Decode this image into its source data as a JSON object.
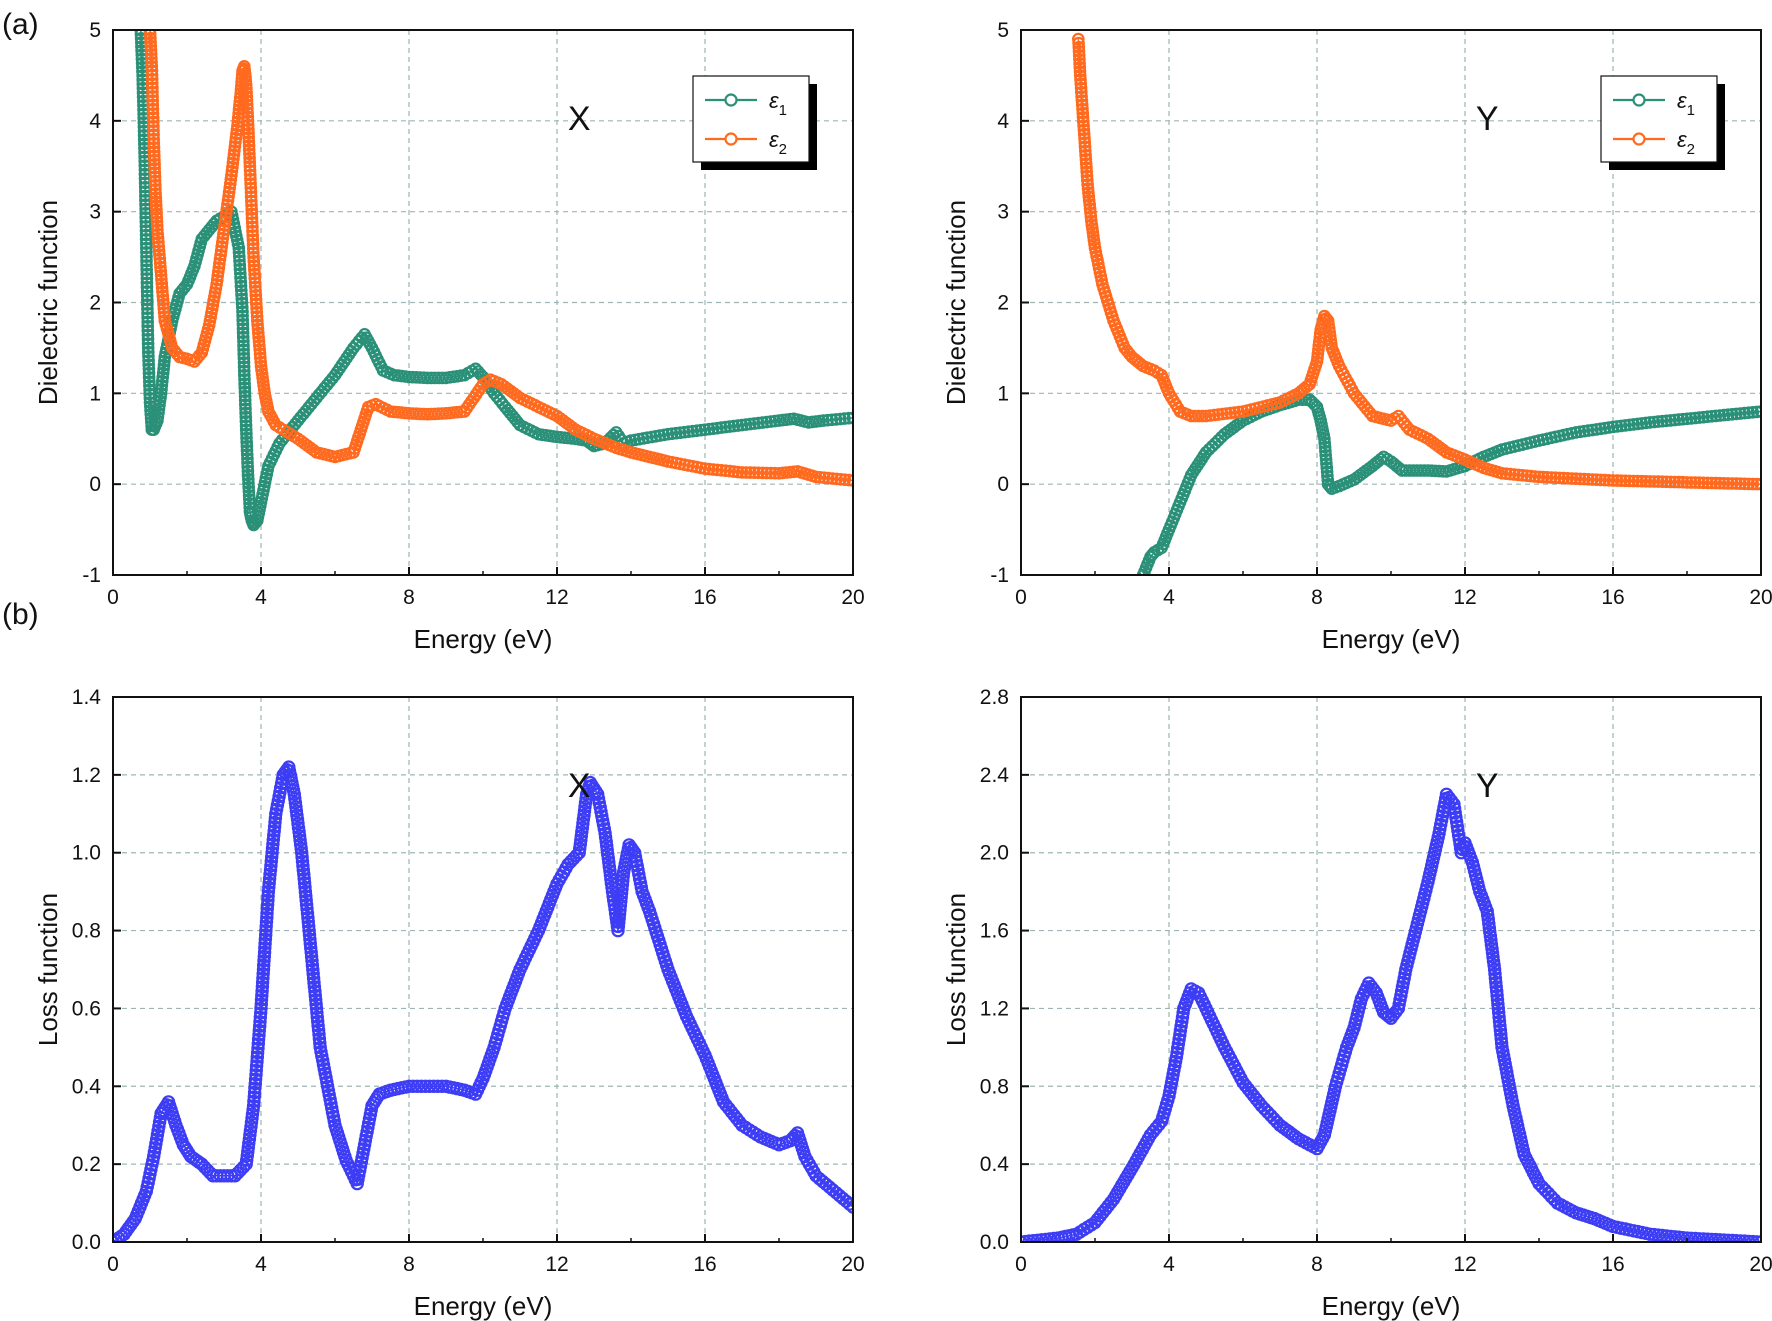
{
  "figure": {
    "panel_a_label": "(a)",
    "panel_b_label": "(b)"
  },
  "colors": {
    "eps1": "#2a9078",
    "eps2": "#ff6a1f",
    "loss": "#3d3df5",
    "grid": "#9fb5b5"
  },
  "chart_data": [
    {
      "id": "a-x",
      "type": "line",
      "title": "X",
      "xlabel": "Energy (eV)",
      "ylabel": "Dielectric function",
      "xlim": [
        0,
        20
      ],
      "ylim": [
        -1,
        5
      ],
      "xticks": [
        0,
        4,
        8,
        12,
        16,
        20
      ],
      "yticks": [
        -1,
        0,
        1,
        2,
        3,
        4,
        5
      ],
      "ytick_labels": [
        "-1",
        "0",
        "1",
        "2",
        "3",
        "4",
        "5"
      ],
      "grid": true,
      "legend": {
        "placement": "top-right",
        "entries": [
          {
            "sym": "ε",
            "sub": "1"
          },
          {
            "sym": "ε",
            "sub": "2"
          }
        ]
      },
      "series": [
        {
          "name": "ε1",
          "color_key": "eps1",
          "x": [
            0.75,
            0.8,
            0.85,
            0.9,
            0.95,
            1.0,
            1.05,
            1.1,
            1.2,
            1.3,
            1.4,
            1.6,
            1.8,
            2.0,
            2.2,
            2.4,
            2.6,
            2.8,
            3.0,
            3.2,
            3.4,
            3.5,
            3.55,
            3.6,
            3.65,
            3.7,
            3.75,
            3.8,
            3.9,
            4.0,
            4.2,
            4.5,
            5.0,
            5.5,
            6.0,
            6.5,
            6.8,
            7.0,
            7.3,
            7.6,
            8.0,
            8.5,
            9.0,
            9.5,
            9.8,
            10.0,
            10.3,
            10.6,
            11.0,
            11.5,
            12.0,
            12.5,
            12.8,
            13.0,
            13.3,
            13.6,
            13.8,
            14.0,
            15.0,
            16.0,
            17.0,
            18.0,
            18.4,
            18.8,
            19.2,
            20.0
          ],
          "y": [
            5.0,
            4.5,
            3.7,
            2.6,
            1.5,
            0.9,
            0.6,
            0.6,
            0.7,
            1.0,
            1.4,
            1.8,
            2.1,
            2.2,
            2.4,
            2.7,
            2.8,
            2.9,
            2.95,
            3.0,
            2.6,
            1.9,
            1.2,
            0.6,
            0.1,
            -0.3,
            -0.4,
            -0.45,
            -0.4,
            -0.2,
            0.2,
            0.45,
            0.7,
            0.95,
            1.2,
            1.5,
            1.65,
            1.5,
            1.25,
            1.2,
            1.18,
            1.17,
            1.17,
            1.2,
            1.27,
            1.18,
            1.0,
            0.85,
            0.65,
            0.55,
            0.52,
            0.5,
            0.48,
            0.42,
            0.45,
            0.57,
            0.45,
            0.48,
            0.55,
            0.6,
            0.65,
            0.7,
            0.72,
            0.68,
            0.7,
            0.73
          ]
        },
        {
          "name": "ε2",
          "color_key": "eps2",
          "x": [
            1.0,
            1.05,
            1.1,
            1.15,
            1.2,
            1.3,
            1.4,
            1.6,
            1.8,
            2.0,
            2.2,
            2.4,
            2.6,
            2.8,
            3.0,
            3.2,
            3.35,
            3.45,
            3.5,
            3.55,
            3.6,
            3.65,
            3.7,
            3.8,
            3.9,
            4.0,
            4.1,
            4.2,
            4.4,
            4.6,
            5.0,
            5.5,
            6.0,
            6.5,
            6.7,
            6.9,
            7.1,
            7.5,
            8.0,
            8.5,
            9.0,
            9.5,
            10.0,
            10.2,
            10.5,
            11.0,
            11.5,
            12.0,
            12.5,
            13.0,
            13.3,
            13.6,
            14.0,
            14.5,
            15.0,
            16.0,
            17.0,
            18.0,
            18.5,
            19.0,
            20.0
          ],
          "y": [
            5.0,
            4.6,
            3.8,
            3.2,
            2.8,
            2.3,
            1.8,
            1.5,
            1.4,
            1.38,
            1.35,
            1.45,
            1.75,
            2.2,
            2.8,
            3.4,
            3.9,
            4.3,
            4.55,
            4.6,
            4.4,
            4.0,
            3.5,
            2.5,
            1.8,
            1.3,
            1.0,
            0.8,
            0.65,
            0.6,
            0.5,
            0.35,
            0.3,
            0.35,
            0.6,
            0.85,
            0.88,
            0.8,
            0.78,
            0.77,
            0.78,
            0.8,
            1.1,
            1.15,
            1.1,
            0.95,
            0.85,
            0.75,
            0.6,
            0.5,
            0.45,
            0.4,
            0.35,
            0.3,
            0.25,
            0.17,
            0.13,
            0.12,
            0.14,
            0.08,
            0.04
          ]
        }
      ]
    },
    {
      "id": "a-y",
      "type": "line",
      "title": "Y",
      "xlabel": "Energy (eV)",
      "ylabel": "Dielectric function",
      "xlim": [
        0,
        20
      ],
      "ylim": [
        -1,
        5
      ],
      "xticks": [
        0,
        4,
        8,
        12,
        16,
        20
      ],
      "yticks": [
        -1,
        0,
        1,
        2,
        3,
        4,
        5
      ],
      "ytick_labels": [
        "-1",
        "0",
        "1",
        "2",
        "3",
        "4",
        "5"
      ],
      "grid": true,
      "legend": {
        "placement": "top-right",
        "entries": [
          {
            "sym": "ε",
            "sub": "1"
          },
          {
            "sym": "ε",
            "sub": "2"
          }
        ]
      },
      "series": [
        {
          "name": "ε1",
          "color_key": "eps1",
          "x": [
            3.3,
            3.5,
            3.6,
            3.8,
            4.0,
            4.3,
            4.6,
            5.0,
            5.5,
            6.0,
            6.5,
            7.0,
            7.5,
            7.8,
            8.0,
            8.1,
            8.2,
            8.3,
            8.4,
            8.6,
            9.0,
            9.5,
            9.8,
            10.0,
            10.3,
            10.6,
            11.0,
            11.5,
            12.0,
            12.5,
            13.0,
            14.0,
            15.0,
            16.0,
            17.0,
            18.0,
            19.0,
            20.0
          ],
          "y": [
            -1.0,
            -0.8,
            -0.75,
            -0.7,
            -0.5,
            -0.2,
            0.1,
            0.35,
            0.55,
            0.7,
            0.8,
            0.87,
            0.93,
            0.93,
            0.85,
            0.7,
            0.5,
            0.0,
            -0.05,
            -0.02,
            0.05,
            0.2,
            0.3,
            0.25,
            0.15,
            0.15,
            0.15,
            0.14,
            0.2,
            0.3,
            0.38,
            0.48,
            0.57,
            0.63,
            0.68,
            0.72,
            0.76,
            0.8
          ]
        },
        {
          "name": "ε2",
          "color_key": "eps2",
          "x": [
            1.55,
            1.6,
            1.7,
            1.8,
            1.9,
            2.0,
            2.2,
            2.5,
            2.8,
            3.0,
            3.3,
            3.6,
            3.8,
            4.0,
            4.3,
            4.6,
            5.0,
            6.0,
            7.0,
            7.5,
            7.8,
            8.0,
            8.1,
            8.2,
            8.3,
            8.4,
            8.6,
            9.0,
            9.5,
            10.0,
            10.2,
            10.5,
            11.0,
            11.5,
            12.0,
            12.5,
            13.0,
            14.0,
            15.0,
            16.0,
            17.0,
            18.0,
            19.0,
            20.0
          ],
          "y": [
            4.9,
            4.5,
            3.9,
            3.3,
            2.9,
            2.6,
            2.2,
            1.8,
            1.5,
            1.4,
            1.3,
            1.25,
            1.2,
            1.0,
            0.8,
            0.75,
            0.75,
            0.8,
            0.9,
            1.0,
            1.1,
            1.35,
            1.7,
            1.85,
            1.8,
            1.5,
            1.3,
            1.0,
            0.75,
            0.7,
            0.75,
            0.6,
            0.5,
            0.35,
            0.27,
            0.18,
            0.12,
            0.08,
            0.06,
            0.04,
            0.03,
            0.02,
            0.01,
            0.0
          ]
        }
      ]
    },
    {
      "id": "b-x",
      "type": "line",
      "title": "X",
      "xlabel": "Energy (eV)",
      "ylabel": "Loss function",
      "xlim": [
        0,
        20
      ],
      "ylim": [
        0,
        1.4
      ],
      "xticks": [
        0,
        4,
        8,
        12,
        16,
        20
      ],
      "yticks": [
        0,
        0.2,
        0.4,
        0.6,
        0.8,
        1.0,
        1.2,
        1.4
      ],
      "ytick_labels": [
        "0.0",
        "0.2",
        "0.4",
        "0.6",
        "0.8",
        "1.0",
        "1.2",
        "1.4"
      ],
      "grid": true,
      "series": [
        {
          "name": "Loss function",
          "color_key": "loss",
          "x": [
            0.0,
            0.3,
            0.6,
            0.9,
            1.1,
            1.3,
            1.5,
            1.7,
            1.9,
            2.1,
            2.4,
            2.7,
            3.0,
            3.3,
            3.6,
            3.8,
            4.0,
            4.2,
            4.4,
            4.6,
            4.75,
            4.9,
            5.1,
            5.3,
            5.6,
            6.0,
            6.3,
            6.6,
            6.8,
            7.0,
            7.2,
            7.5,
            8.0,
            9.0,
            9.5,
            9.8,
            10.0,
            10.3,
            10.6,
            11.0,
            11.5,
            12.0,
            12.3,
            12.6,
            12.8,
            12.9,
            13.1,
            13.3,
            13.5,
            13.65,
            13.8,
            13.95,
            14.1,
            14.3,
            14.5,
            15.0,
            15.5,
            16.0,
            16.5,
            17.0,
            17.5,
            18.0,
            18.3,
            18.5,
            18.7,
            19.0,
            20.0
          ],
          "y": [
            0.0,
            0.02,
            0.06,
            0.13,
            0.22,
            0.33,
            0.36,
            0.3,
            0.25,
            0.22,
            0.2,
            0.17,
            0.17,
            0.17,
            0.2,
            0.35,
            0.6,
            0.9,
            1.1,
            1.2,
            1.22,
            1.15,
            1.0,
            0.8,
            0.5,
            0.3,
            0.21,
            0.15,
            0.25,
            0.35,
            0.38,
            0.39,
            0.4,
            0.4,
            0.39,
            0.38,
            0.42,
            0.5,
            0.6,
            0.7,
            0.8,
            0.92,
            0.97,
            1.0,
            1.15,
            1.18,
            1.15,
            1.05,
            0.9,
            0.8,
            0.95,
            1.02,
            1.0,
            0.9,
            0.85,
            0.7,
            0.58,
            0.48,
            0.36,
            0.3,
            0.27,
            0.25,
            0.26,
            0.28,
            0.22,
            0.17,
            0.09
          ]
        }
      ]
    },
    {
      "id": "b-y",
      "type": "line",
      "title": "Y",
      "xlabel": "Energy (eV)",
      "ylabel": "Loss function",
      "xlim": [
        0,
        20
      ],
      "ylim": [
        0,
        2.8
      ],
      "xticks": [
        0,
        4,
        8,
        12,
        16,
        20
      ],
      "yticks": [
        0,
        0.4,
        0.8,
        1.2,
        1.6,
        2.0,
        2.4,
        2.8
      ],
      "ytick_labels": [
        "0.0",
        "0.4",
        "0.8",
        "1.2",
        "1.6",
        "2.0",
        "2.4",
        "2.8"
      ],
      "grid": true,
      "series": [
        {
          "name": "Loss function",
          "color_key": "loss",
          "x": [
            0.0,
            1.0,
            1.5,
            2.0,
            2.5,
            3.0,
            3.5,
            3.8,
            4.0,
            4.2,
            4.4,
            4.6,
            4.8,
            5.0,
            5.5,
            6.0,
            6.5,
            7.0,
            7.5,
            8.0,
            8.2,
            8.5,
            8.8,
            9.0,
            9.2,
            9.4,
            9.6,
            9.8,
            10.0,
            10.2,
            10.4,
            10.6,
            11.0,
            11.3,
            11.5,
            11.7,
            11.9,
            12.0,
            12.2,
            12.4,
            12.6,
            12.8,
            13.0,
            13.3,
            13.6,
            14.0,
            14.5,
            15.0,
            15.5,
            16.0,
            17.0,
            18.0,
            19.0,
            20.0
          ],
          "y": [
            0.0,
            0.02,
            0.04,
            0.1,
            0.22,
            0.38,
            0.55,
            0.62,
            0.75,
            0.95,
            1.2,
            1.3,
            1.28,
            1.2,
            1.0,
            0.82,
            0.7,
            0.6,
            0.53,
            0.48,
            0.55,
            0.8,
            1.0,
            1.1,
            1.25,
            1.33,
            1.28,
            1.18,
            1.15,
            1.2,
            1.4,
            1.55,
            1.85,
            2.1,
            2.3,
            2.25,
            2.0,
            2.05,
            1.95,
            1.8,
            1.7,
            1.4,
            1.0,
            0.7,
            0.45,
            0.3,
            0.2,
            0.15,
            0.12,
            0.08,
            0.04,
            0.02,
            0.01,
            0.0
          ]
        }
      ]
    }
  ]
}
